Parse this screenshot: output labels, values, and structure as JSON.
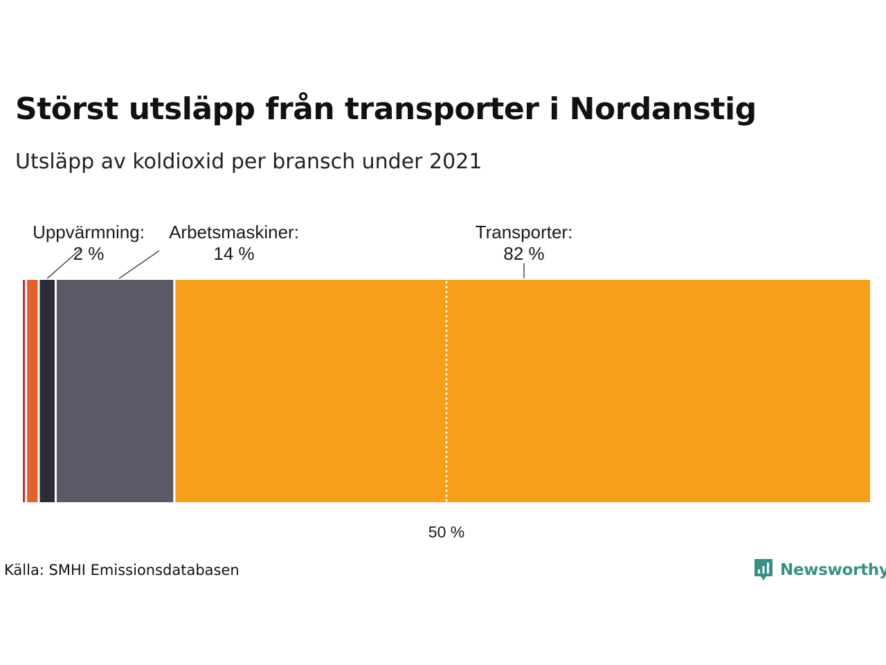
{
  "title": "Störst utsläpp från transporter i Nordanstig",
  "subtitle": "Utsläpp av koldioxid per bransch under 2021",
  "source": "Källa: SMHI Emissionsdatabasen",
  "logo": {
    "text": "Newsworthy",
    "color": "#3a8f85",
    "icon": "newsworthy-bar-chart-icon"
  },
  "chart_data": {
    "type": "stacked-bar-100",
    "orientation": "horizontal",
    "segments": [
      {
        "name": "",
        "value": 0.5,
        "color": "#b8323b",
        "label": "",
        "pct_label": ""
      },
      {
        "name": "",
        "value": 1.5,
        "color": "#e2622e",
        "label": "",
        "pct_label": ""
      },
      {
        "name": "Uppvärmning",
        "value": 2,
        "color": "#2c2c38",
        "label": "Uppvärmning:",
        "pct_label": "2 %"
      },
      {
        "name": "Arbetsmaskiner",
        "value": 14,
        "color": "#5a5966",
        "label": "Arbetsmaskiner:",
        "pct_label": "14 %"
      },
      {
        "name": "Transporter",
        "value": 82,
        "color": "#f59f1a",
        "label": "Transporter:",
        "pct_label": "82 %"
      }
    ],
    "reference_line": {
      "value": 50,
      "label": "50 %"
    },
    "xlim": [
      0,
      100
    ]
  }
}
